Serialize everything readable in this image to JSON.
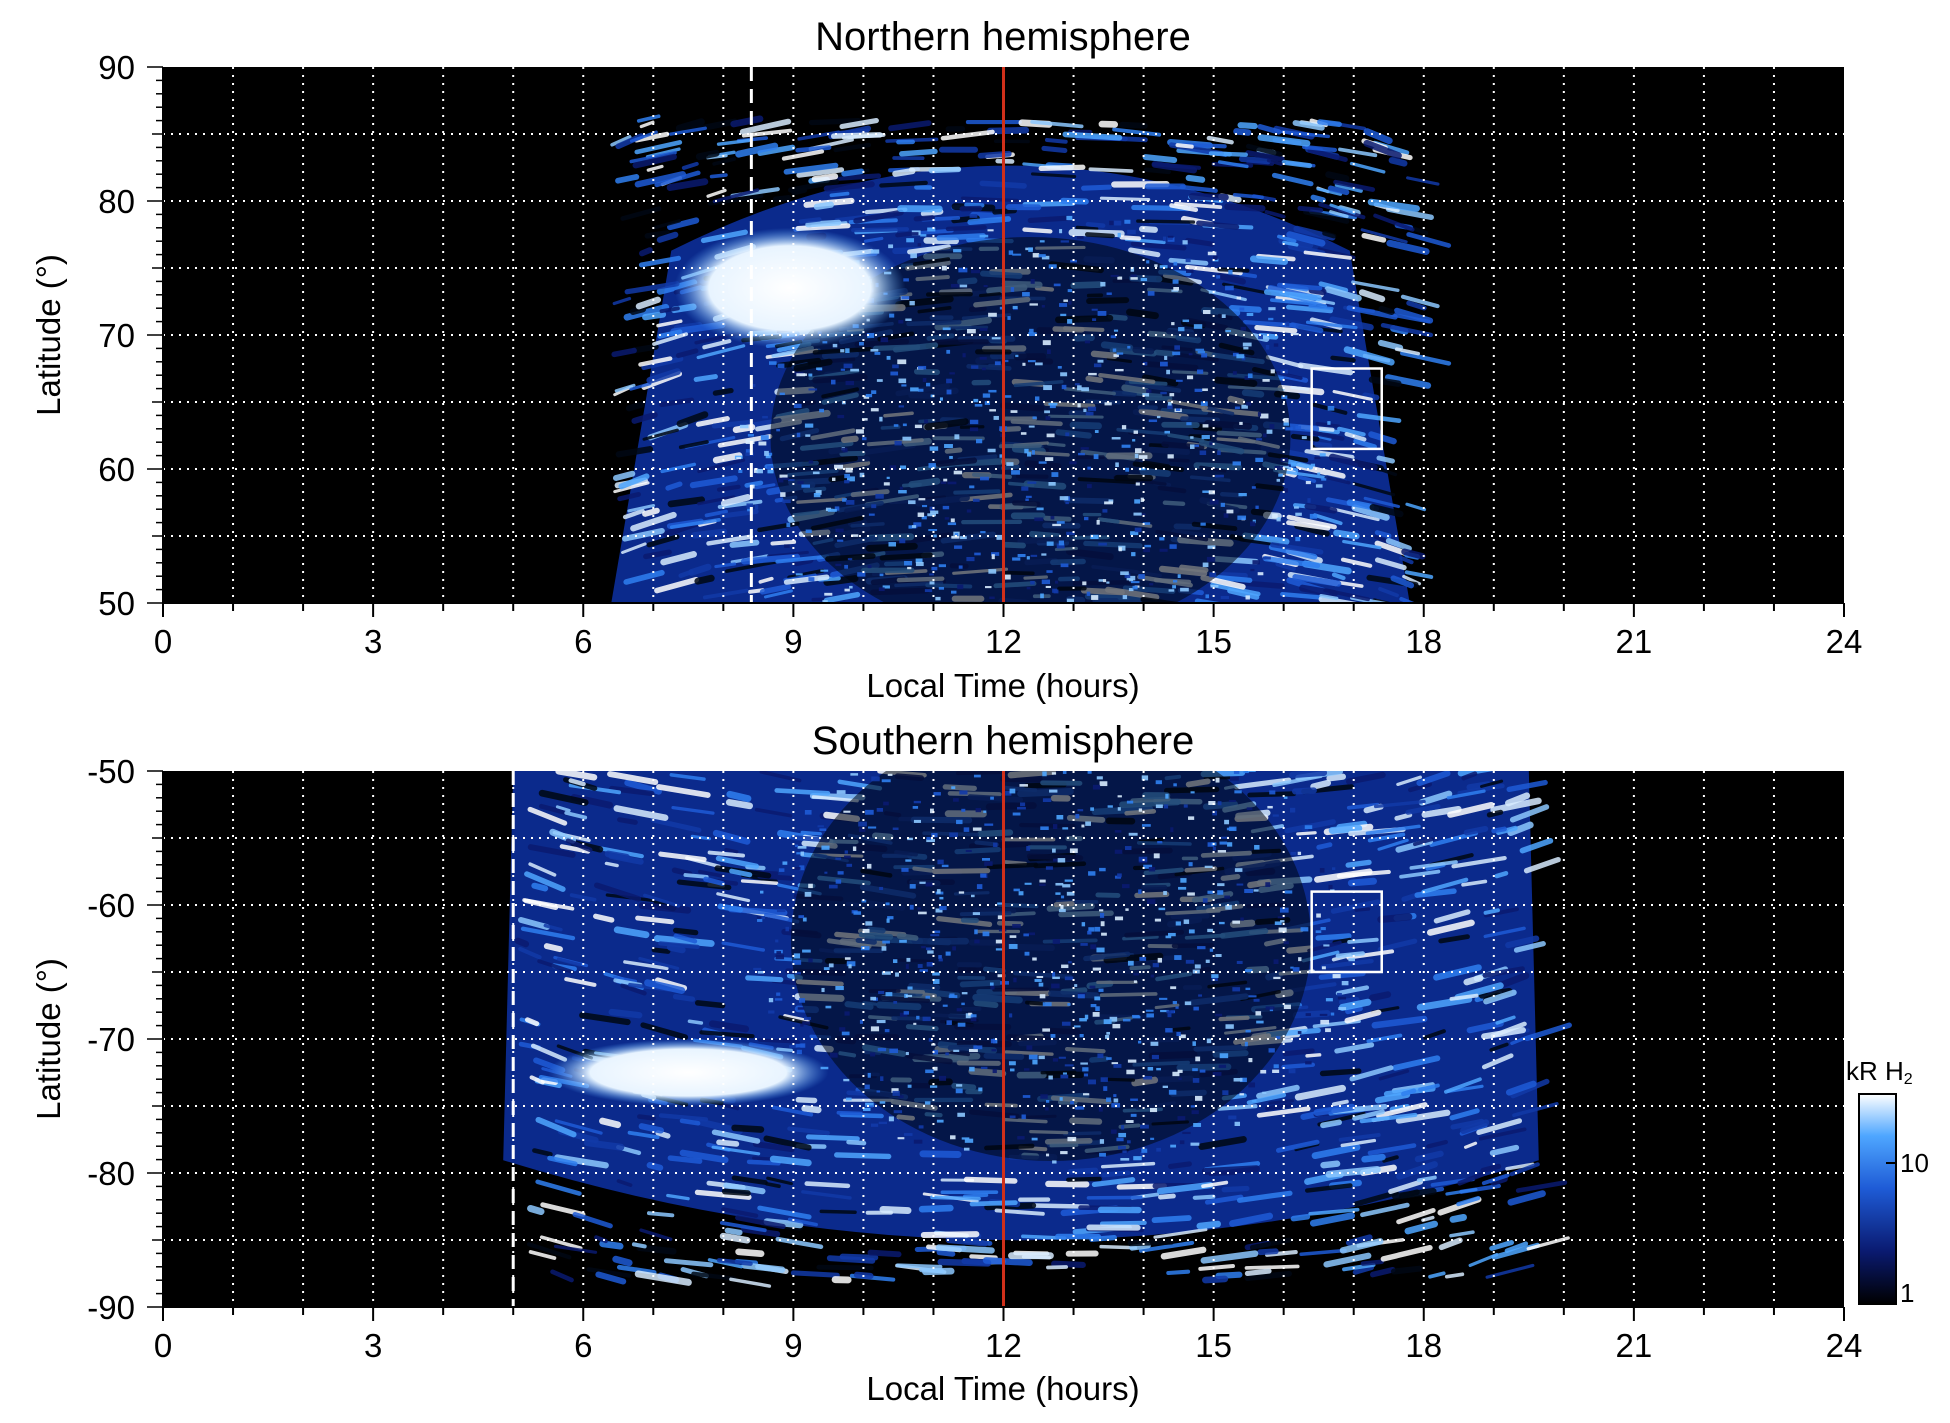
{
  "chart_data": [
    {
      "type": "heatmap",
      "title": "Northern hemisphere",
      "xlabel": "Local Time (hours)",
      "ylabel": "Latitude (°)",
      "xlim": [
        0,
        24
      ],
      "ylim": [
        50,
        90
      ],
      "xticks": [
        "0",
        "3",
        "6",
        "9",
        "12",
        "15",
        "18",
        "21",
        "24"
      ],
      "yticks": [
        "50",
        "60",
        "70",
        "80",
        "90"
      ],
      "grid": true,
      "noon_line_x": 12,
      "dashed_line_x": 8.4,
      "box": {
        "x": [
          16.4,
          17.4
        ],
        "y": [
          61.5,
          67.5
        ]
      },
      "emission_extent": {
        "x": [
          6.4,
          17.8
        ],
        "y_top": 86
      },
      "bright_spot": {
        "x": [
          7.3,
          10.6
        ],
        "y": [
          69,
          78
        ]
      }
    },
    {
      "type": "heatmap",
      "title": "Southern hemisphere",
      "xlabel": "Local Time (hours)",
      "ylabel": "Latitude (°)",
      "xlim": [
        0,
        24
      ],
      "ylim": [
        -90,
        -50
      ],
      "xticks": [
        "0",
        "3",
        "6",
        "9",
        "12",
        "15",
        "18",
        "21",
        "24"
      ],
      "yticks": [
        "-90",
        "-80",
        "-70",
        "-60",
        "-50"
      ],
      "grid": true,
      "noon_line_x": 12,
      "dashed_line_x": 5.0,
      "box": {
        "x": [
          16.4,
          17.4
        ],
        "y": [
          -65,
          -59
        ]
      },
      "emission_extent": {
        "x": [
          5.0,
          19.5
        ],
        "y_bottom": -88
      },
      "bright_spot": {
        "x": [
          5.5,
          9.5
        ],
        "y": [
          -75,
          -70
        ]
      }
    }
  ],
  "colorbar": {
    "label": "kR H",
    "label_sub": "2",
    "ticks": [
      "1",
      "10"
    ],
    "scale": "log",
    "range": [
      1,
      30
    ],
    "colors": [
      "#000000",
      "#0a1a70",
      "#1e5bd6",
      "#4ea6ff",
      "#ffffff"
    ]
  },
  "colors": {
    "noon_line": "#d0301a",
    "background": "#000000",
    "grid": "#ffffff"
  }
}
